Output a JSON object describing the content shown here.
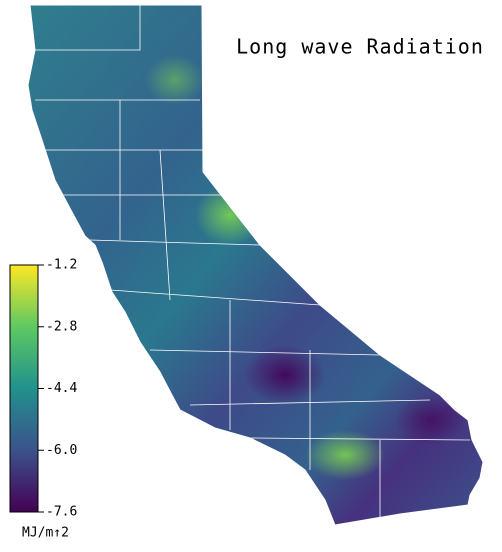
{
  "title": "Long wave Radiation",
  "colorbar": {
    "label": "MJ/m↑2",
    "lim": [
      -7.6,
      -1.2
    ],
    "ticks": [
      -1.2,
      -2.8,
      -4.4,
      {
        "value": -6,
        "label": "-6.0"
      },
      -7.6
    ]
  }
}
